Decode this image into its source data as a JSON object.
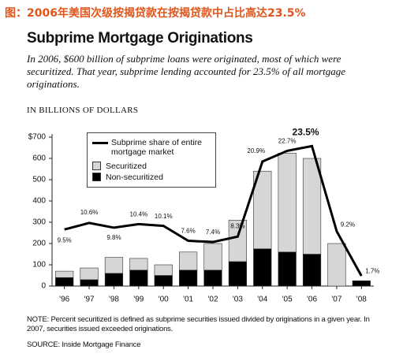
{
  "header": "图：2006年美国次级按揭贷款在按揭贷款中占比高达23.5%",
  "chart_data": {
    "type": "bar-line",
    "title": "Subprime Mortgage Originations",
    "subtitle": "In 2006, $600 billion of subprime loans were originated, most of which were securitized. That year, subprime lending accounted for 23.5% of all mortgage originations.",
    "y_label": "IN BILLIONS OF DOLLARS",
    "categories": [
      "'96",
      "'97",
      "'98",
      "'99",
      "'00",
      "'01",
      "'02",
      "'03",
      "'04",
      "'05",
      "'06",
      "'07",
      "'08"
    ],
    "series": [
      {
        "name": "Non-securitized",
        "color": "#000000",
        "values": [
          40,
          30,
          60,
          75,
          50,
          75,
          75,
          115,
          175,
          160,
          150,
          0,
          25
        ]
      },
      {
        "name": "Securitized",
        "color": "#d6d6d6",
        "values": [
          30,
          55,
          75,
          55,
          50,
          85,
          125,
          195,
          365,
          465,
          450,
          200,
          0
        ]
      },
      {
        "name": "Subprime share of entire mortgage market",
        "color": "#000000",
        "axis": "y2",
        "type": "line",
        "values": [
          9.5,
          10.6,
          9.8,
          10.4,
          10.1,
          7.6,
          7.4,
          8.3,
          20.9,
          22.7,
          23.5,
          9.2,
          1.7
        ],
        "value_labels": [
          "9.5%",
          "10.6%",
          "9.8%",
          "10.4%",
          "10.1%",
          "7.6%",
          "7.4%",
          "8.3%",
          "20.9%",
          "22.7%",
          "23.5%",
          "9.2%",
          "1.7%"
        ]
      }
    ],
    "ylim": [
      0,
      700
    ],
    "yticks": [
      0,
      100,
      200,
      300,
      400,
      500,
      600,
      {
        "value": 700,
        "label": "$700"
      }
    ],
    "y2lim": [
      0,
      25
    ],
    "grid": false,
    "note": "NOTE: Percent securitized is defined as subprime securities issued divided by originations in a given year. In 2007, securities issued exceeded originations.",
    "source": "SOURCE: Inside Mortgage Finance"
  }
}
